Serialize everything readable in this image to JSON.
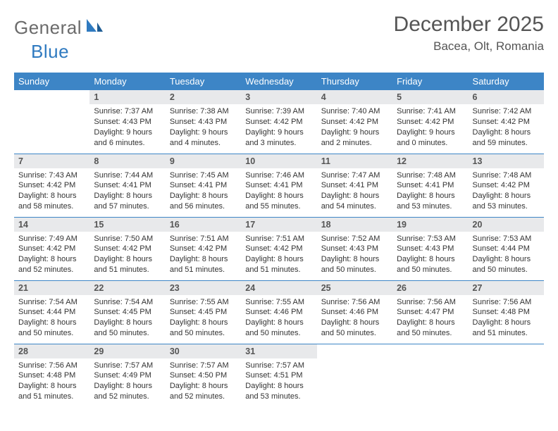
{
  "logo": {
    "text1": "General",
    "text2": "Blue"
  },
  "title": "December 2025",
  "location": "Bacea, Olt, Romania",
  "colors": {
    "header_bg": "#3d85c6",
    "header_text": "#ffffff",
    "daynum_bg": "#e8e9eb",
    "rule": "#3d85c6",
    "logo_gray": "#6b6b6b",
    "logo_blue": "#2f7ac0",
    "body_text": "#333333"
  },
  "typography": {
    "title_fontsize": 30,
    "location_fontsize": 17,
    "th_fontsize": 13,
    "daynum_fontsize": 12.5,
    "body_fontsize": 11
  },
  "weekdays": [
    "Sunday",
    "Monday",
    "Tuesday",
    "Wednesday",
    "Thursday",
    "Friday",
    "Saturday"
  ],
  "weeks": [
    [
      {
        "n": "",
        "sr": "",
        "ss": "",
        "dl": ""
      },
      {
        "n": "1",
        "sr": "Sunrise: 7:37 AM",
        "ss": "Sunset: 4:43 PM",
        "dl": "Daylight: 9 hours and 6 minutes."
      },
      {
        "n": "2",
        "sr": "Sunrise: 7:38 AM",
        "ss": "Sunset: 4:43 PM",
        "dl": "Daylight: 9 hours and 4 minutes."
      },
      {
        "n": "3",
        "sr": "Sunrise: 7:39 AM",
        "ss": "Sunset: 4:42 PM",
        "dl": "Daylight: 9 hours and 3 minutes."
      },
      {
        "n": "4",
        "sr": "Sunrise: 7:40 AM",
        "ss": "Sunset: 4:42 PM",
        "dl": "Daylight: 9 hours and 2 minutes."
      },
      {
        "n": "5",
        "sr": "Sunrise: 7:41 AM",
        "ss": "Sunset: 4:42 PM",
        "dl": "Daylight: 9 hours and 0 minutes."
      },
      {
        "n": "6",
        "sr": "Sunrise: 7:42 AM",
        "ss": "Sunset: 4:42 PM",
        "dl": "Daylight: 8 hours and 59 minutes."
      }
    ],
    [
      {
        "n": "7",
        "sr": "Sunrise: 7:43 AM",
        "ss": "Sunset: 4:42 PM",
        "dl": "Daylight: 8 hours and 58 minutes."
      },
      {
        "n": "8",
        "sr": "Sunrise: 7:44 AM",
        "ss": "Sunset: 4:41 PM",
        "dl": "Daylight: 8 hours and 57 minutes."
      },
      {
        "n": "9",
        "sr": "Sunrise: 7:45 AM",
        "ss": "Sunset: 4:41 PM",
        "dl": "Daylight: 8 hours and 56 minutes."
      },
      {
        "n": "10",
        "sr": "Sunrise: 7:46 AM",
        "ss": "Sunset: 4:41 PM",
        "dl": "Daylight: 8 hours and 55 minutes."
      },
      {
        "n": "11",
        "sr": "Sunrise: 7:47 AM",
        "ss": "Sunset: 4:41 PM",
        "dl": "Daylight: 8 hours and 54 minutes."
      },
      {
        "n": "12",
        "sr": "Sunrise: 7:48 AM",
        "ss": "Sunset: 4:41 PM",
        "dl": "Daylight: 8 hours and 53 minutes."
      },
      {
        "n": "13",
        "sr": "Sunrise: 7:48 AM",
        "ss": "Sunset: 4:42 PM",
        "dl": "Daylight: 8 hours and 53 minutes."
      }
    ],
    [
      {
        "n": "14",
        "sr": "Sunrise: 7:49 AM",
        "ss": "Sunset: 4:42 PM",
        "dl": "Daylight: 8 hours and 52 minutes."
      },
      {
        "n": "15",
        "sr": "Sunrise: 7:50 AM",
        "ss": "Sunset: 4:42 PM",
        "dl": "Daylight: 8 hours and 51 minutes."
      },
      {
        "n": "16",
        "sr": "Sunrise: 7:51 AM",
        "ss": "Sunset: 4:42 PM",
        "dl": "Daylight: 8 hours and 51 minutes."
      },
      {
        "n": "17",
        "sr": "Sunrise: 7:51 AM",
        "ss": "Sunset: 4:42 PM",
        "dl": "Daylight: 8 hours and 51 minutes."
      },
      {
        "n": "18",
        "sr": "Sunrise: 7:52 AM",
        "ss": "Sunset: 4:43 PM",
        "dl": "Daylight: 8 hours and 50 minutes."
      },
      {
        "n": "19",
        "sr": "Sunrise: 7:53 AM",
        "ss": "Sunset: 4:43 PM",
        "dl": "Daylight: 8 hours and 50 minutes."
      },
      {
        "n": "20",
        "sr": "Sunrise: 7:53 AM",
        "ss": "Sunset: 4:44 PM",
        "dl": "Daylight: 8 hours and 50 minutes."
      }
    ],
    [
      {
        "n": "21",
        "sr": "Sunrise: 7:54 AM",
        "ss": "Sunset: 4:44 PM",
        "dl": "Daylight: 8 hours and 50 minutes."
      },
      {
        "n": "22",
        "sr": "Sunrise: 7:54 AM",
        "ss": "Sunset: 4:45 PM",
        "dl": "Daylight: 8 hours and 50 minutes."
      },
      {
        "n": "23",
        "sr": "Sunrise: 7:55 AM",
        "ss": "Sunset: 4:45 PM",
        "dl": "Daylight: 8 hours and 50 minutes."
      },
      {
        "n": "24",
        "sr": "Sunrise: 7:55 AM",
        "ss": "Sunset: 4:46 PM",
        "dl": "Daylight: 8 hours and 50 minutes."
      },
      {
        "n": "25",
        "sr": "Sunrise: 7:56 AM",
        "ss": "Sunset: 4:46 PM",
        "dl": "Daylight: 8 hours and 50 minutes."
      },
      {
        "n": "26",
        "sr": "Sunrise: 7:56 AM",
        "ss": "Sunset: 4:47 PM",
        "dl": "Daylight: 8 hours and 50 minutes."
      },
      {
        "n": "27",
        "sr": "Sunrise: 7:56 AM",
        "ss": "Sunset: 4:48 PM",
        "dl": "Daylight: 8 hours and 51 minutes."
      }
    ],
    [
      {
        "n": "28",
        "sr": "Sunrise: 7:56 AM",
        "ss": "Sunset: 4:48 PM",
        "dl": "Daylight: 8 hours and 51 minutes."
      },
      {
        "n": "29",
        "sr": "Sunrise: 7:57 AM",
        "ss": "Sunset: 4:49 PM",
        "dl": "Daylight: 8 hours and 52 minutes."
      },
      {
        "n": "30",
        "sr": "Sunrise: 7:57 AM",
        "ss": "Sunset: 4:50 PM",
        "dl": "Daylight: 8 hours and 52 minutes."
      },
      {
        "n": "31",
        "sr": "Sunrise: 7:57 AM",
        "ss": "Sunset: 4:51 PM",
        "dl": "Daylight: 8 hours and 53 minutes."
      },
      {
        "n": "",
        "sr": "",
        "ss": "",
        "dl": ""
      },
      {
        "n": "",
        "sr": "",
        "ss": "",
        "dl": ""
      },
      {
        "n": "",
        "sr": "",
        "ss": "",
        "dl": ""
      }
    ]
  ]
}
